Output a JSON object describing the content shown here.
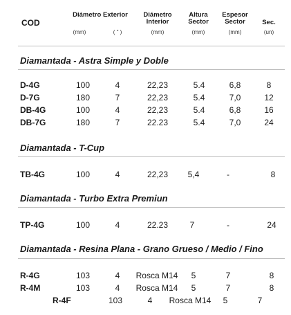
{
  "header": {
    "cod": "COD",
    "outer_diameter": "Diámetro Exterior",
    "outer_unit_mm": "(mm)",
    "outer_unit_in": "( \" )",
    "inner_diameter_l1": "Diámetro",
    "inner_diameter_l2": "Interior",
    "inner_unit": "(mm)",
    "sector_height_l1": "Altura",
    "sector_height_l2": "Sector",
    "sector_height_unit": "(mm)",
    "sector_thickness_l1": "Espesor",
    "sector_thickness_l2": "Sector",
    "sector_thickness_unit": "(mm)",
    "sec_l1": "Sec.",
    "sec_unit": "(un)"
  },
  "sections": [
    {
      "title": "Diamantada - Astra Simple y Doble",
      "rows": [
        {
          "cod": "D-4G",
          "mm": "100",
          "in": "4",
          "inner": "22,23",
          "height": "5.4",
          "thick": "6,8",
          "sec": "8"
        },
        {
          "cod": "D-7G",
          "mm": "180",
          "in": "7",
          "inner": "22,23",
          "height": "5.4",
          "thick": "7,0",
          "sec": "12"
        },
        {
          "cod": "DB-4G",
          "mm": "100",
          "in": "4",
          "inner": "22,23",
          "height": "5.4",
          "thick": "6,8",
          "sec": "16"
        },
        {
          "cod": "DB-7G",
          "mm": "180",
          "in": "7",
          "inner": "22.23",
          "height": "5.4",
          "thick": "7,0",
          "sec": "24"
        }
      ]
    },
    {
      "title": "Diamantada - T-Cup",
      "rows": [
        {
          "cod": "TB-4G",
          "mm": "100",
          "in": "4",
          "inner": "22,23",
          "height": "5,4",
          "thick": "-",
          "sec": "8"
        }
      ]
    },
    {
      "title": "Diamantada - Turbo Extra Premiun",
      "rows": [
        {
          "cod": "TP-4G",
          "mm": "100",
          "in": "4",
          "inner": "22.23",
          "height": "7",
          "thick": "-",
          "sec": "24"
        }
      ]
    },
    {
      "title": "Diamantada - Resina Plana - Grano Grueso / Medio / Fino",
      "rows": [
        {
          "cod": "R-4G",
          "mm": "103",
          "in": "4",
          "inner": "Rosca M14",
          "height": "5",
          "thick": "7",
          "sec": "8"
        },
        {
          "cod": "R-4M",
          "mm": "103",
          "in": "4",
          "inner": "Rosca M14",
          "height": "5",
          "thick": "7",
          "sec": "8"
        },
        {
          "cod": "R-4F",
          "mm": "103",
          "in": "4",
          "inner": "Rosca M14",
          "height": "5",
          "thick": "7",
          "sec": ""
        }
      ]
    }
  ]
}
